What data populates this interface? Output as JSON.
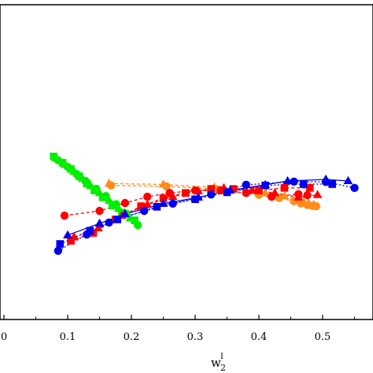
{
  "chart_data": {
    "type": "scatter",
    "title": "",
    "xlabel": {
      "base": "w",
      "subscript": "2",
      "superscript": "I"
    },
    "ylabel": "",
    "xlim": [
      0.0,
      0.56
    ],
    "ylim": [
      0.0,
      1.0
    ],
    "grid": false,
    "legend": "none",
    "x_ticks": [
      {
        "value": 0.0,
        "label": "0"
      },
      {
        "value": 0.1,
        "label": "0.1"
      },
      {
        "value": 0.2,
        "label": "0.2"
      },
      {
        "value": 0.3,
        "label": "0.3"
      },
      {
        "value": 0.4,
        "label": "0.4"
      },
      {
        "value": 0.5,
        "label": "0.5"
      }
    ],
    "series": [
      {
        "color": "#00ee00",
        "marker": "square",
        "line": "dash",
        "points": [
          [
            0.078,
            0.518
          ],
          [
            0.092,
            0.498
          ],
          [
            0.105,
            0.478
          ],
          [
            0.118,
            0.455
          ],
          [
            0.13,
            0.432
          ],
          [
            0.142,
            0.41
          ],
          [
            0.155,
            0.388
          ],
          [
            0.17,
            0.362
          ],
          [
            0.185,
            0.34
          ],
          [
            0.205,
            0.315
          ]
        ]
      },
      {
        "color": "#00ee00",
        "marker": "triangle",
        "line": "dash",
        "points": [
          [
            0.082,
            0.512
          ],
          [
            0.096,
            0.492
          ],
          [
            0.11,
            0.47
          ],
          [
            0.123,
            0.448
          ],
          [
            0.136,
            0.425
          ],
          [
            0.15,
            0.402
          ],
          [
            0.165,
            0.378
          ],
          [
            0.18,
            0.352
          ],
          [
            0.198,
            0.322
          ]
        ]
      },
      {
        "color": "#00ee00",
        "marker": "circle",
        "line": "dash",
        "points": [
          [
            0.085,
            0.506
          ],
          [
            0.1,
            0.485
          ],
          [
            0.114,
            0.462
          ],
          [
            0.128,
            0.44
          ],
          [
            0.145,
            0.415
          ],
          [
            0.16,
            0.392
          ],
          [
            0.176,
            0.366
          ],
          [
            0.192,
            0.336
          ],
          [
            0.21,
            0.3
          ]
        ]
      },
      {
        "color": "#ff8c1a",
        "marker": "triangle",
        "line": "dash",
        "points": [
          [
            0.165,
            0.432
          ],
          [
            0.25,
            0.429
          ],
          [
            0.33,
            0.42
          ],
          [
            0.41,
            0.402
          ],
          [
            0.44,
            0.392
          ],
          [
            0.46,
            0.382
          ],
          [
            0.47,
            0.374
          ],
          [
            0.478,
            0.369
          ],
          [
            0.486,
            0.365
          ]
        ]
      },
      {
        "color": "#ff8c1a",
        "marker": "circle",
        "line": "dash",
        "points": [
          [
            0.168,
            0.426
          ],
          [
            0.255,
            0.423
          ],
          [
            0.335,
            0.414
          ],
          [
            0.4,
            0.396
          ],
          [
            0.432,
            0.386
          ],
          [
            0.455,
            0.376
          ],
          [
            0.466,
            0.369
          ],
          [
            0.476,
            0.364
          ],
          [
            0.484,
            0.361
          ],
          [
            0.49,
            0.36
          ]
        ]
      },
      {
        "color": "#ff0000",
        "marker": "circle",
        "line": "dash",
        "points": [
          [
            0.095,
            0.33
          ],
          [
            0.15,
            0.345
          ],
          [
            0.19,
            0.37
          ],
          [
            0.225,
            0.39
          ],
          [
            0.26,
            0.402
          ],
          [
            0.3,
            0.41
          ],
          [
            0.34,
            0.41
          ],
          [
            0.38,
            0.402
          ],
          [
            0.42,
            0.39
          ],
          [
            0.462,
            0.398
          ],
          [
            0.476,
            0.395
          ]
        ]
      },
      {
        "color": "#ff0000",
        "marker": "square",
        "line": "dash",
        "points": [
          [
            0.105,
            0.25
          ],
          [
            0.14,
            0.275
          ],
          [
            0.175,
            0.318
          ],
          [
            0.215,
            0.36
          ],
          [
            0.25,
            0.385
          ],
          [
            0.285,
            0.402
          ],
          [
            0.325,
            0.415
          ],
          [
            0.36,
            0.415
          ],
          [
            0.4,
            0.41
          ],
          [
            0.44,
            0.418
          ],
          [
            0.48,
            0.418
          ]
        ]
      },
      {
        "color": "#ff0000",
        "marker": "triangle",
        "line": "dash",
        "points": [
          [
            0.11,
            0.262
          ],
          [
            0.148,
            0.29
          ],
          [
            0.185,
            0.33
          ],
          [
            0.225,
            0.365
          ],
          [
            0.265,
            0.39
          ],
          [
            0.305,
            0.408
          ],
          [
            0.345,
            0.418
          ],
          [
            0.39,
            0.41
          ],
          [
            0.425,
            0.402
          ],
          [
            0.462,
            0.388
          ],
          [
            0.492,
            0.396
          ]
        ]
      },
      {
        "color": "#0000ee",
        "marker": "circle",
        "line": "dot",
        "points": [
          [
            0.085,
            0.218
          ],
          [
            0.13,
            0.27
          ],
          [
            0.165,
            0.308
          ],
          [
            0.22,
            0.345
          ],
          [
            0.265,
            0.368
          ],
          [
            0.325,
            0.397
          ],
          [
            0.38,
            0.428
          ],
          [
            0.455,
            0.438
          ],
          [
            0.505,
            0.437
          ],
          [
            0.55,
            0.418
          ]
        ]
      },
      {
        "color": "#0000ee",
        "marker": "triangle",
        "line": "solid",
        "points": [
          [
            0.1,
            0.268
          ],
          [
            0.15,
            0.305
          ],
          [
            0.19,
            0.335
          ],
          [
            0.25,
            0.368
          ],
          [
            0.305,
            0.388
          ],
          [
            0.355,
            0.41
          ],
          [
            0.41,
            0.428
          ],
          [
            0.445,
            0.44
          ],
          [
            0.505,
            0.445
          ],
          [
            0.54,
            0.44
          ]
        ]
      },
      {
        "color": "#0000ee",
        "marker": "square",
        "line": "dot",
        "points": [
          [
            0.088,
            0.24
          ],
          [
            0.135,
            0.282
          ],
          [
            0.178,
            0.318
          ],
          [
            0.24,
            0.358
          ],
          [
            0.3,
            0.382
          ],
          [
            0.35,
            0.404
          ],
          [
            0.41,
            0.426
          ],
          [
            0.47,
            0.43
          ],
          [
            0.515,
            0.43
          ]
        ]
      }
    ]
  }
}
